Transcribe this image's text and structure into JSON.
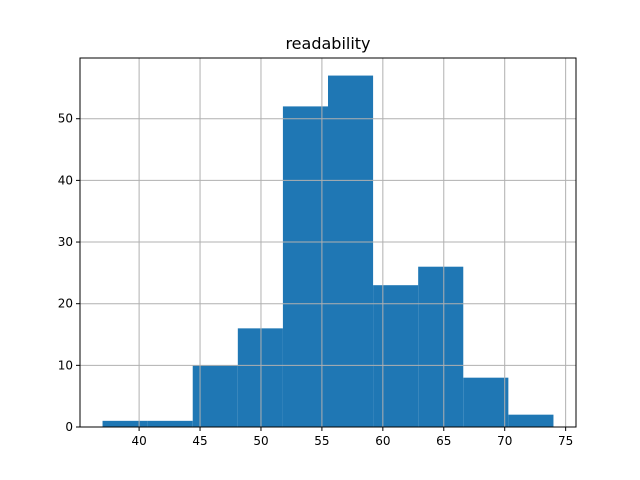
{
  "chart_data": {
    "type": "bar",
    "title": "readability",
    "xlabel": "",
    "ylabel": "",
    "bin_edges": [
      37.0,
      40.7,
      44.4,
      48.1,
      51.8,
      55.5,
      59.2,
      62.9,
      66.6,
      70.3,
      74.0
    ],
    "values": [
      1,
      1,
      10,
      16,
      52,
      57,
      23,
      26,
      8,
      2
    ],
    "xlim": [
      35.15,
      75.85
    ],
    "ylim": [
      0,
      59.85
    ],
    "xticks": [
      40,
      45,
      50,
      55,
      60,
      65,
      70,
      75
    ],
    "yticks": [
      0,
      10,
      20,
      30,
      40,
      50
    ],
    "grid": true,
    "bar_color": "#1f77b4"
  }
}
